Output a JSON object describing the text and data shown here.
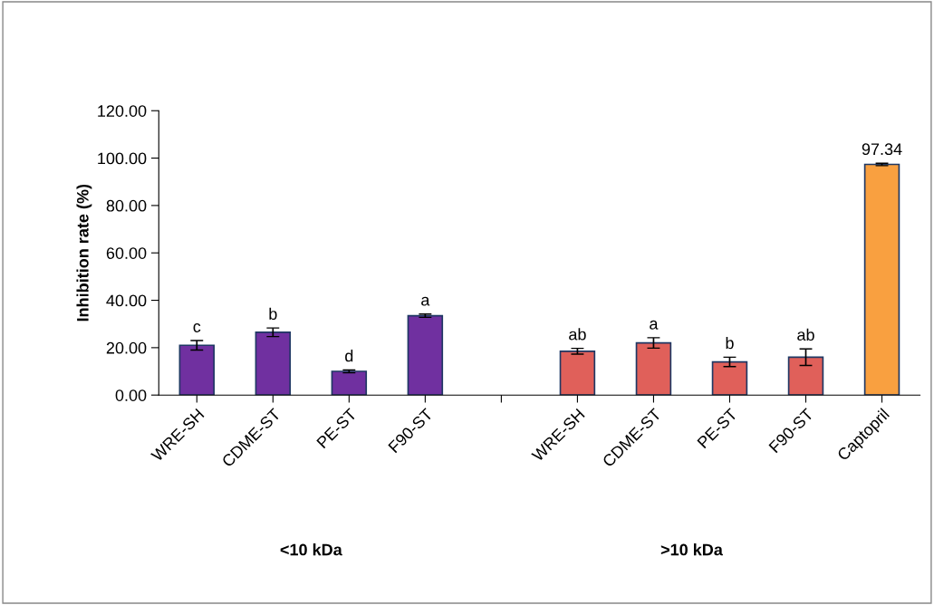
{
  "chart_data": {
    "type": "bar",
    "ylabel": "Inhibition rate (%)",
    "categories": [
      "WRE-SH",
      "CDME-ST",
      "PE-ST",
      "F90-ST",
      null,
      "WRE-SH",
      "CDME-ST",
      "PE-ST",
      "F90-ST",
      "Captopril"
    ],
    "values": [
      21.0,
      26.5,
      10.0,
      33.5,
      null,
      18.5,
      22.0,
      14.0,
      16.0,
      97.34
    ],
    "errors": [
      2.0,
      1.8,
      0.6,
      0.7,
      null,
      1.2,
      2.2,
      2.0,
      3.5,
      0.5
    ],
    "colors": [
      "#7030a0",
      "#7030a0",
      "#7030a0",
      "#7030a0",
      null,
      "#e0605a",
      "#e0605a",
      "#e0605a",
      "#e0605a",
      "#f9a040"
    ],
    "value_labels": [
      "c",
      "b",
      "d",
      "a",
      null,
      "ab",
      "a",
      "b",
      "ab",
      "97.34"
    ],
    "annotations": [
      "<10 kDa",
      ">10 kDa"
    ],
    "ylim": [
      0,
      120
    ],
    "yticks": [
      {
        "value": 0,
        "label": "0.00"
      },
      {
        "value": 20,
        "label": "20.00"
      },
      {
        "value": 40,
        "label": "40.00"
      },
      {
        "value": 60,
        "label": "60.00"
      },
      {
        "value": 80,
        "label": "80.00"
      },
      {
        "value": 100,
        "label": "100.00"
      },
      {
        "value": 120,
        "label": "120.00"
      }
    ],
    "grid": false,
    "legend": false
  }
}
